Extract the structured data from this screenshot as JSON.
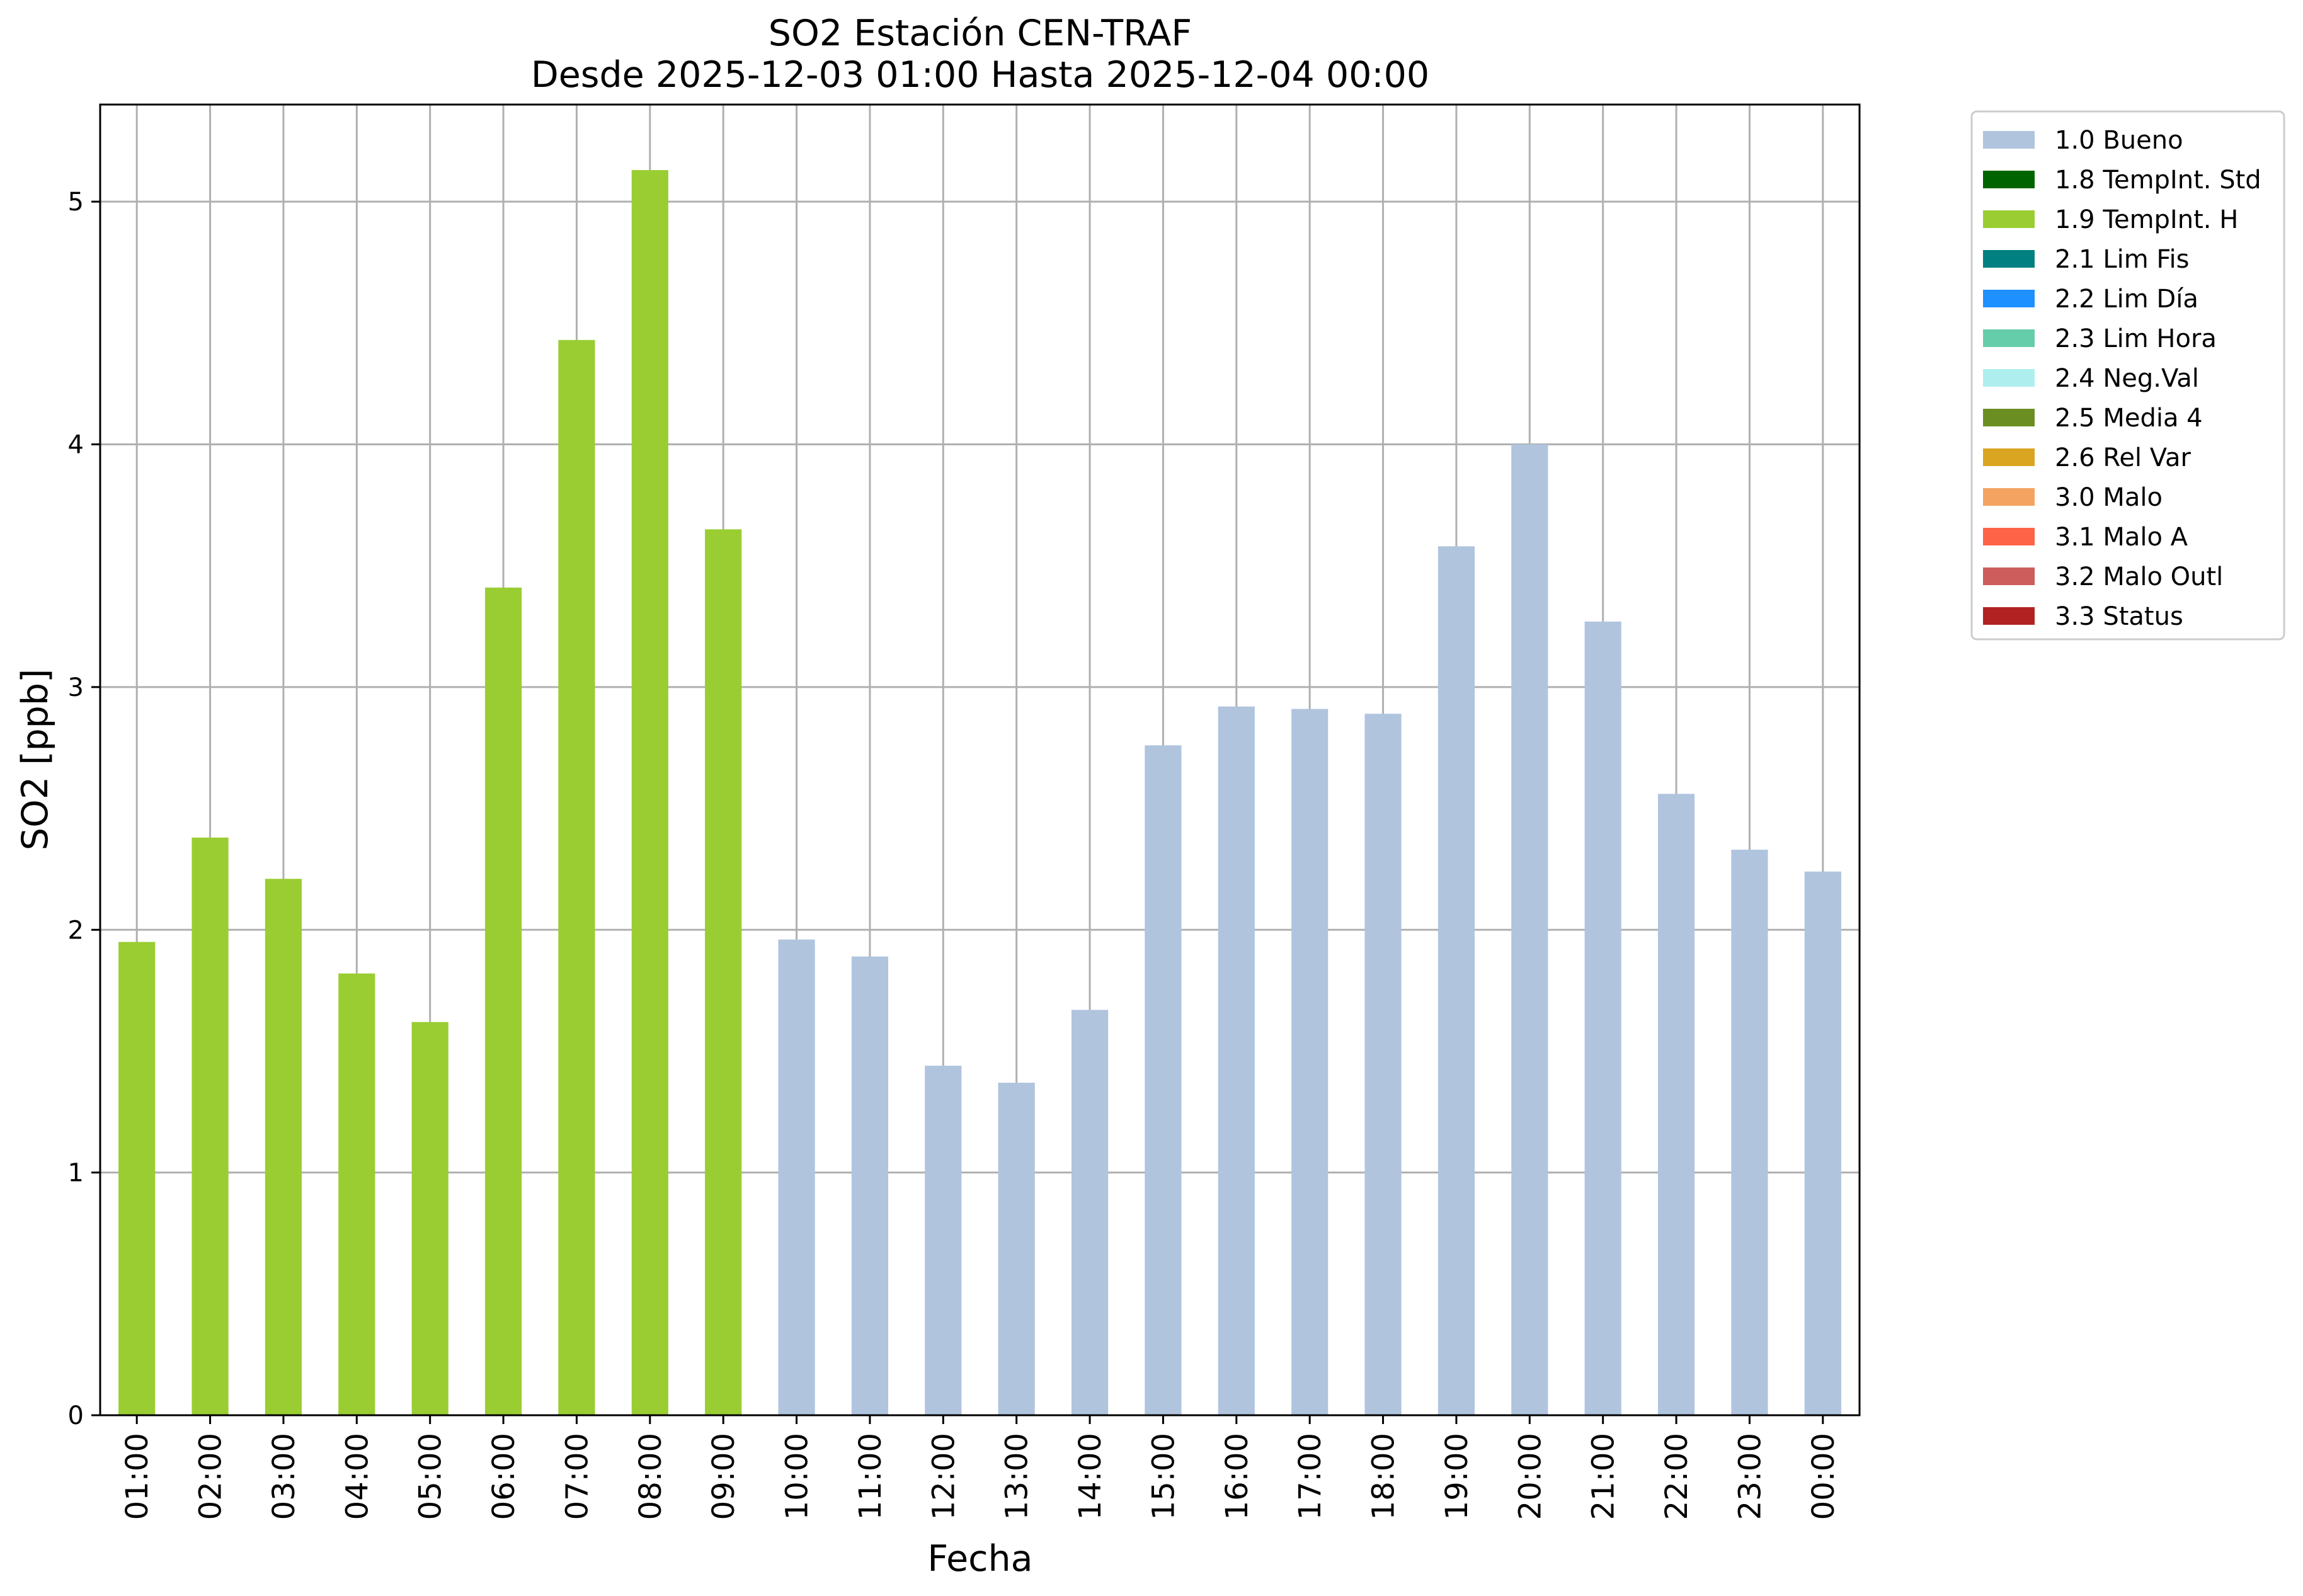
{
  "chart_data": {
    "type": "bar",
    "title": "SO2 Estación CEN-TRAF",
    "subtitle": "Desde 2025-12-03 01:00 Hasta 2025-12-04 00:00",
    "xlabel": "Fecha",
    "ylabel": "SO2 [ppb]",
    "ylim": [
      0,
      5.4
    ],
    "yticks": [
      "0",
      "1",
      "2",
      "3",
      "4",
      "5"
    ],
    "grid": true,
    "legend_position": "outside-right",
    "categories": [
      "01:00",
      "02:00",
      "03:00",
      "04:00",
      "05:00",
      "06:00",
      "07:00",
      "08:00",
      "09:00",
      "10:00",
      "11:00",
      "12:00",
      "13:00",
      "14:00",
      "15:00",
      "16:00",
      "17:00",
      "18:00",
      "19:00",
      "20:00",
      "21:00",
      "22:00",
      "23:00",
      "00:00"
    ],
    "values": [
      1.95,
      2.38,
      2.21,
      1.82,
      1.62,
      3.41,
      4.43,
      5.13,
      3.65,
      1.96,
      1.89,
      1.44,
      1.37,
      1.67,
      2.76,
      2.92,
      2.91,
      2.89,
      3.58,
      4.0,
      3.27,
      2.56,
      2.33,
      2.24
    ],
    "flags": [
      "1.9 TempInt. H",
      "1.9 TempInt. H",
      "1.9 TempInt. H",
      "1.9 TempInt. H",
      "1.9 TempInt. H",
      "1.9 TempInt. H",
      "1.9 TempInt. H",
      "1.9 TempInt. H",
      "1.9 TempInt. H",
      "1.0 Bueno",
      "1.0 Bueno",
      "1.0 Bueno",
      "1.0 Bueno",
      "1.0 Bueno",
      "1.0 Bueno",
      "1.0 Bueno",
      "1.0 Bueno",
      "1.0 Bueno",
      "1.0 Bueno",
      "1.0 Bueno",
      "1.0 Bueno",
      "1.0 Bueno",
      "1.0 Bueno",
      "1.0 Bueno"
    ],
    "legend": [
      {
        "label": "1.0 Bueno",
        "color": "#b0c4de"
      },
      {
        "label": "1.8 TempInt. Std",
        "color": "#006400"
      },
      {
        "label": "1.9 TempInt. H",
        "color": "#9acd32"
      },
      {
        "label": "2.1 Lim Fis",
        "color": "#008080"
      },
      {
        "label": "2.2 Lim Día",
        "color": "#1e90ff"
      },
      {
        "label": "2.3 Lim Hora",
        "color": "#66cdaa"
      },
      {
        "label": "2.4 Neg.Val",
        "color": "#afeeee"
      },
      {
        "label": "2.5 Media 4",
        "color": "#6b8e23"
      },
      {
        "label": "2.6 Rel Var",
        "color": "#daa520"
      },
      {
        "label": "3.0 Malo",
        "color": "#f4a460"
      },
      {
        "label": "3.1 Malo A",
        "color": "#ff6347"
      },
      {
        "label": "3.2 Malo Outl",
        "color": "#cd5c5c"
      },
      {
        "label": "3.3 Status",
        "color": "#b22222"
      }
    ]
  }
}
